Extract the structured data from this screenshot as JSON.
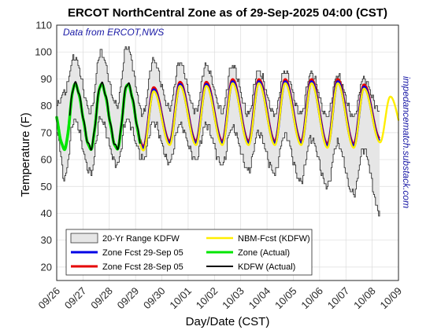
{
  "chart_data": {
    "type": "line",
    "title": "ERCOT NorthCentral Zone as of 29-Sep-2025 04:00 (CST)",
    "xlabel": "Day/Date (CST)",
    "ylabel": "Temperature (F)",
    "annotation": "Data from ERCOT,NWS",
    "side_text": "impedancematch.substack.com",
    "ylim": [
      15,
      110
    ],
    "yticks": [
      20,
      30,
      40,
      50,
      60,
      70,
      80,
      90,
      100,
      110
    ],
    "xlim": [
      0,
      13
    ],
    "x_unit": "days since 09/26 00:00",
    "xtick_labels": [
      "09/26",
      "09/27",
      "09/28",
      "09/29",
      "09/30",
      "10/01",
      "10/02",
      "10/03",
      "10/04",
      "10/05",
      "10/06",
      "10/07",
      "10/08",
      "10/09"
    ],
    "grid": true,
    "legend_position": "bottom-left",
    "colors": {
      "range_fill": "#e6e6e6",
      "range_edge": "#333333",
      "zone_fcst_sep29": "#0000e6",
      "zone_fcst_sep28": "#e60000",
      "nbm_fcst": "#ffee00",
      "zone_actual": "#00e600",
      "kdfw_actual": "#000000"
    },
    "daily_extremes": [
      {
        "day": "09/26",
        "low": 64,
        "high": 88
      },
      {
        "day": "09/27",
        "low": 64,
        "high": 88
      },
      {
        "day": "09/28",
        "low": 64,
        "high": 88
      },
      {
        "day": "09/29",
        "low": 64,
        "high": 86
      },
      {
        "day": "09/30",
        "low": 66,
        "high": 88
      },
      {
        "day": "10/01",
        "low": 66,
        "high": 88
      },
      {
        "day": "10/02",
        "low": 66,
        "high": 89
      },
      {
        "day": "10/03",
        "low": 66,
        "high": 89
      },
      {
        "day": "10/04",
        "low": 66,
        "high": 89
      },
      {
        "day": "10/05",
        "low": 66,
        "high": 89
      },
      {
        "day": "10/06",
        "low": 65,
        "high": 89
      },
      {
        "day": "10/07",
        "low": 65,
        "high": 87
      },
      {
        "day": "10/08",
        "low": 67,
        "high": 84
      }
    ],
    "range_20yr": {
      "name": "20-Yr Range KDFW",
      "x": [
        0,
        0.28,
        0.65,
        1.28,
        1.65,
        2.28,
        2.65,
        3.28,
        3.65,
        4.28,
        4.65,
        5.28,
        5.65,
        6.28,
        6.65,
        7.28,
        7.65,
        8.28,
        8.65,
        9.28,
        9.65,
        10.28,
        10.65,
        11.28,
        11.65,
        12.28
      ],
      "upper": [
        80,
        85,
        98,
        78,
        100,
        80,
        102,
        77,
        97,
        79,
        96,
        78,
        95,
        78,
        95,
        77,
        93,
        77,
        93,
        77,
        92,
        76,
        91,
        76,
        90,
        78
      ],
      "lower": [
        70,
        53,
        75,
        55,
        75,
        58,
        75,
        60,
        74,
        59,
        73,
        60,
        73,
        58,
        72,
        56,
        70,
        55,
        69,
        52,
        68,
        50,
        66,
        47,
        64,
        40
      ]
    },
    "series": [
      {
        "name": "Zone Fcst 29-Sep 05",
        "start": 3.17,
        "end": 12.25
      },
      {
        "name": "Zone Fcst 28-Sep 05",
        "start": 3.17,
        "end": 12.25
      },
      {
        "name": "NBM-Fcst (KDFW)",
        "start": 3.0,
        "end": 13.0
      },
      {
        "name": "Zone (Actual)",
        "start": 0.0,
        "end": 3.17
      },
      {
        "name": "KDFW (Actual)",
        "start": 0.5,
        "end": 3.17
      }
    ]
  }
}
